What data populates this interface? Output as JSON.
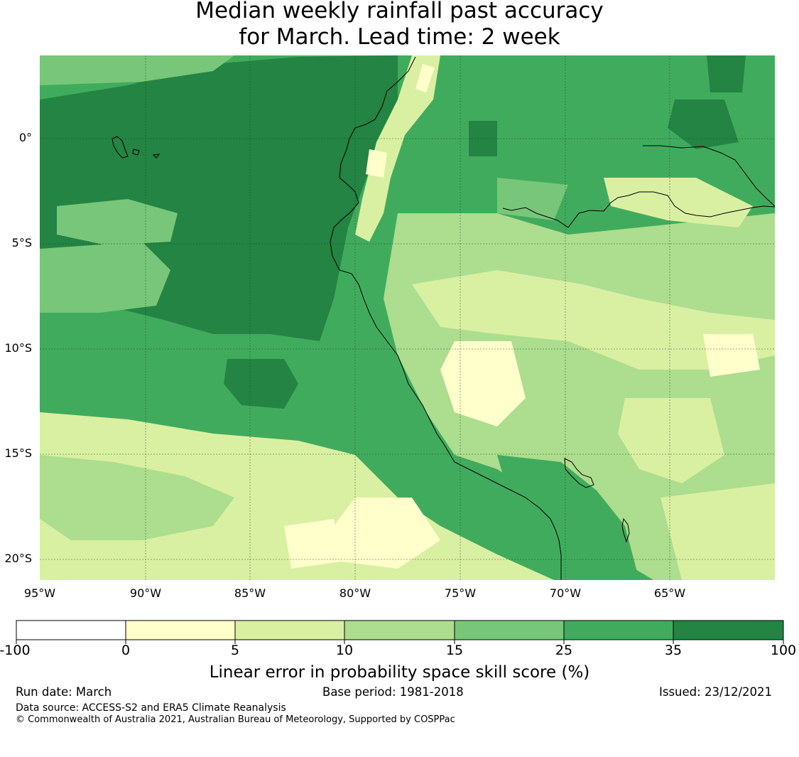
{
  "title": {
    "line1": "Median weekly rainfall past accuracy",
    "line2": "for March. Lead time: 2 week"
  },
  "chart_data": {
    "type": "heatmap",
    "variable": "Linear error in probability space skill score (%)",
    "lon_range": [
      -95,
      -60
    ],
    "lat_range": [
      -21,
      4
    ],
    "lat_ticks": [
      "0°",
      "5°S",
      "10°S",
      "15°S",
      "20°S"
    ],
    "lon_ticks": [
      "95°W",
      "90°W",
      "85°W",
      "80°W",
      "75°W",
      "70°W",
      "65°W"
    ],
    "colorbar": {
      "bins": [
        {
          "from": -100,
          "to": 0,
          "color": "#ffffff"
        },
        {
          "from": 0,
          "to": 5,
          "color": "#ffffcc"
        },
        {
          "from": 5,
          "to": 10,
          "color": "#d9f0a3"
        },
        {
          "from": 10,
          "to": 15,
          "color": "#addd8e"
        },
        {
          "from": 15,
          "to": 25,
          "color": "#78c679"
        },
        {
          "from": 25,
          "to": 35,
          "color": "#41ab5d"
        },
        {
          "from": 35,
          "to": 100,
          "color": "#238443"
        }
      ],
      "tick_labels": [
        "-100",
        "0",
        "5",
        "10",
        "15",
        "25",
        "35",
        "100"
      ],
      "label": "Linear error in probability space skill score (%)"
    }
  },
  "footer": {
    "run_date": "Run date: March",
    "base_period": "Base period: 1981-2018",
    "issued": "Issued: 23/12/2021",
    "data_source": "Data source: ACCESS-S2 and ERA5 Climate Reanalysis",
    "copyright": "© Commonwealth of Australia 2021, Australian Bureau of Meteorology, Supported by COSPPac"
  }
}
